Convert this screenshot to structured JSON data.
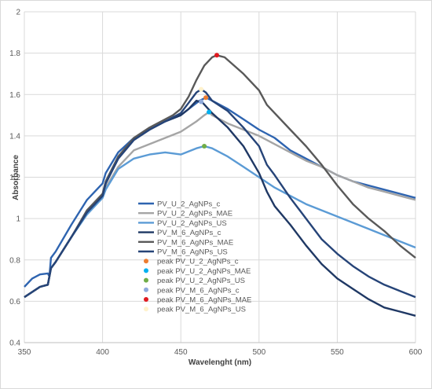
{
  "chart_data": {
    "type": "line",
    "xlabel": "Wavelenght (nm)",
    "ylabel": "Absorbance",
    "xlim": [
      350,
      600
    ],
    "ylim": [
      0.4,
      2
    ],
    "xticks": [
      350,
      400,
      450,
      500,
      550,
      600
    ],
    "yticks": [
      0.4,
      0.6,
      0.8,
      1,
      1.2,
      1.4,
      1.6,
      1.8,
      2
    ],
    "grid": "horizontal",
    "legend_position": "center-left",
    "series": [
      {
        "name": "PV_U_2_AgNPs_c",
        "color": "#2E64B0",
        "points": [
          [
            350,
            0.67
          ],
          [
            355,
            0.71
          ],
          [
            360,
            0.73
          ],
          [
            365,
            0.735
          ],
          [
            366,
            0.72
          ],
          [
            367,
            0.81
          ],
          [
            370,
            0.84
          ],
          [
            380,
            0.97
          ],
          [
            390,
            1.09
          ],
          [
            400,
            1.17
          ],
          [
            402,
            1.22
          ],
          [
            410,
            1.32
          ],
          [
            420,
            1.39
          ],
          [
            430,
            1.43
          ],
          [
            440,
            1.47
          ],
          [
            450,
            1.5
          ],
          [
            455,
            1.53
          ],
          [
            462,
            1.57
          ],
          [
            466,
            1.585
          ],
          [
            470,
            1.57
          ],
          [
            480,
            1.53
          ],
          [
            490,
            1.48
          ],
          [
            500,
            1.43
          ],
          [
            510,
            1.39
          ],
          [
            520,
            1.33
          ],
          [
            530,
            1.29
          ],
          [
            540,
            1.25
          ],
          [
            550,
            1.21
          ],
          [
            560,
            1.18
          ],
          [
            570,
            1.16
          ],
          [
            580,
            1.14
          ],
          [
            590,
            1.12
          ],
          [
            600,
            1.1
          ]
        ]
      },
      {
        "name": "PV_U_2_AgNPs_MAE",
        "color": "#A5A5A5",
        "points": [
          [
            350,
            0.62
          ],
          [
            360,
            0.67
          ],
          [
            365,
            0.68
          ],
          [
            367,
            0.76
          ],
          [
            370,
            0.79
          ],
          [
            380,
            0.91
          ],
          [
            390,
            1.03
          ],
          [
            400,
            1.11
          ],
          [
            402,
            1.15
          ],
          [
            410,
            1.25
          ],
          [
            420,
            1.33
          ],
          [
            430,
            1.36
          ],
          [
            440,
            1.39
          ],
          [
            450,
            1.42
          ],
          [
            460,
            1.47
          ],
          [
            465,
            1.5
          ],
          [
            468,
            1.515
          ],
          [
            470,
            1.5
          ],
          [
            480,
            1.46
          ],
          [
            490,
            1.43
          ],
          [
            500,
            1.4
          ],
          [
            510,
            1.36
          ],
          [
            520,
            1.32
          ],
          [
            530,
            1.28
          ],
          [
            540,
            1.25
          ],
          [
            550,
            1.21
          ],
          [
            560,
            1.18
          ],
          [
            570,
            1.15
          ],
          [
            580,
            1.13
          ],
          [
            590,
            1.11
          ],
          [
            600,
            1.09
          ]
        ]
      },
      {
        "name": "PV_U_2_AgNPs_US",
        "color": "#5B9BD5",
        "points": [
          [
            350,
            0.62
          ],
          [
            360,
            0.67
          ],
          [
            365,
            0.68
          ],
          [
            367,
            0.76
          ],
          [
            370,
            0.79
          ],
          [
            380,
            0.91
          ],
          [
            390,
            1.02
          ],
          [
            400,
            1.1
          ],
          [
            402,
            1.14
          ],
          [
            410,
            1.24
          ],
          [
            420,
            1.29
          ],
          [
            430,
            1.31
          ],
          [
            440,
            1.32
          ],
          [
            450,
            1.31
          ],
          [
            460,
            1.34
          ],
          [
            465,
            1.35
          ],
          [
            470,
            1.34
          ],
          [
            480,
            1.3
          ],
          [
            490,
            1.25
          ],
          [
            500,
            1.2
          ],
          [
            510,
            1.15
          ],
          [
            520,
            1.11
          ],
          [
            530,
            1.07
          ],
          [
            540,
            1.04
          ],
          [
            550,
            1.01
          ],
          [
            560,
            0.98
          ],
          [
            570,
            0.95
          ],
          [
            580,
            0.92
          ],
          [
            590,
            0.89
          ],
          [
            600,
            0.86
          ]
        ]
      },
      {
        "name": "PV_M_6_AgNPs_c",
        "color": "#1F3864",
        "points": [
          [
            350,
            0.62
          ],
          [
            360,
            0.67
          ],
          [
            365,
            0.68
          ],
          [
            367,
            0.76
          ],
          [
            370,
            0.79
          ],
          [
            380,
            0.91
          ],
          [
            390,
            1.03
          ],
          [
            400,
            1.11
          ],
          [
            402,
            1.17
          ],
          [
            410,
            1.29
          ],
          [
            420,
            1.38
          ],
          [
            430,
            1.43
          ],
          [
            440,
            1.47
          ],
          [
            450,
            1.5
          ],
          [
            455,
            1.53
          ],
          [
            460,
            1.57
          ],
          [
            464,
            1.56
          ],
          [
            470,
            1.51
          ],
          [
            480,
            1.44
          ],
          [
            490,
            1.35
          ],
          [
            500,
            1.22
          ],
          [
            505,
            1.13
          ],
          [
            510,
            1.06
          ],
          [
            520,
            0.97
          ],
          [
            530,
            0.87
          ],
          [
            540,
            0.78
          ],
          [
            550,
            0.71
          ],
          [
            560,
            0.66
          ],
          [
            570,
            0.61
          ],
          [
            580,
            0.57
          ],
          [
            590,
            0.55
          ],
          [
            600,
            0.53
          ]
        ]
      },
      {
        "name": "PV_M_6_AgNPs_MAE",
        "color": "#595959",
        "points": [
          [
            350,
            0.62
          ],
          [
            360,
            0.67
          ],
          [
            365,
            0.68
          ],
          [
            367,
            0.76
          ],
          [
            370,
            0.79
          ],
          [
            380,
            0.91
          ],
          [
            390,
            1.04
          ],
          [
            400,
            1.12
          ],
          [
            402,
            1.18
          ],
          [
            410,
            1.3
          ],
          [
            420,
            1.39
          ],
          [
            430,
            1.44
          ],
          [
            440,
            1.48
          ],
          [
            445,
            1.5
          ],
          [
            450,
            1.53
          ],
          [
            455,
            1.59
          ],
          [
            460,
            1.67
          ],
          [
            465,
            1.74
          ],
          [
            470,
            1.78
          ],
          [
            473,
            1.79
          ],
          [
            478,
            1.78
          ],
          [
            490,
            1.7
          ],
          [
            500,
            1.62
          ],
          [
            505,
            1.55
          ],
          [
            510,
            1.51
          ],
          [
            520,
            1.43
          ],
          [
            530,
            1.35
          ],
          [
            540,
            1.26
          ],
          [
            550,
            1.16
          ],
          [
            560,
            1.07
          ],
          [
            570,
            1.0
          ],
          [
            580,
            0.94
          ],
          [
            590,
            0.87
          ],
          [
            600,
            0.81
          ]
        ]
      },
      {
        "name": "PV_M_6_AgNPs_US",
        "color": "#264478",
        "points": [
          [
            350,
            0.62
          ],
          [
            360,
            0.67
          ],
          [
            365,
            0.68
          ],
          [
            367,
            0.76
          ],
          [
            370,
            0.79
          ],
          [
            380,
            0.91
          ],
          [
            390,
            1.03
          ],
          [
            400,
            1.11
          ],
          [
            402,
            1.17
          ],
          [
            410,
            1.29
          ],
          [
            420,
            1.38
          ],
          [
            430,
            1.43
          ],
          [
            440,
            1.47
          ],
          [
            450,
            1.51
          ],
          [
            455,
            1.56
          ],
          [
            460,
            1.61
          ],
          [
            463,
            1.625
          ],
          [
            466,
            1.61
          ],
          [
            470,
            1.57
          ],
          [
            480,
            1.52
          ],
          [
            490,
            1.44
          ],
          [
            500,
            1.35
          ],
          [
            505,
            1.26
          ],
          [
            510,
            1.21
          ],
          [
            520,
            1.1
          ],
          [
            530,
            1.0
          ],
          [
            540,
            0.9
          ],
          [
            550,
            0.83
          ],
          [
            560,
            0.77
          ],
          [
            570,
            0.72
          ],
          [
            580,
            0.68
          ],
          [
            590,
            0.65
          ],
          [
            600,
            0.62
          ]
        ]
      }
    ],
    "peaks": [
      {
        "name": "peak PV_U_2_AgNPs_c",
        "color": "#ED7D31",
        "x": 466,
        "y": 1.585
      },
      {
        "name": "peak PV_U_2_AgNPs_MAE",
        "color": "#00B0F0",
        "x": 468,
        "y": 1.515
      },
      {
        "name": "peak PV_U_2_AgNPs_US",
        "color": "#70AD47",
        "x": 465,
        "y": 1.35
      },
      {
        "name": "peak PV_M_6_AgNPs_c",
        "color": "#8FAADC",
        "x": 463,
        "y": 1.565
      },
      {
        "name": "peak PV_M_6_AgNPs_MAE",
        "color": "#E0191F",
        "x": 473,
        "y": 1.79
      },
      {
        "name": "peak PV_M_6_AgNPs_US",
        "color": "#FFF2CC",
        "x": 463,
        "y": 1.625
      }
    ]
  }
}
